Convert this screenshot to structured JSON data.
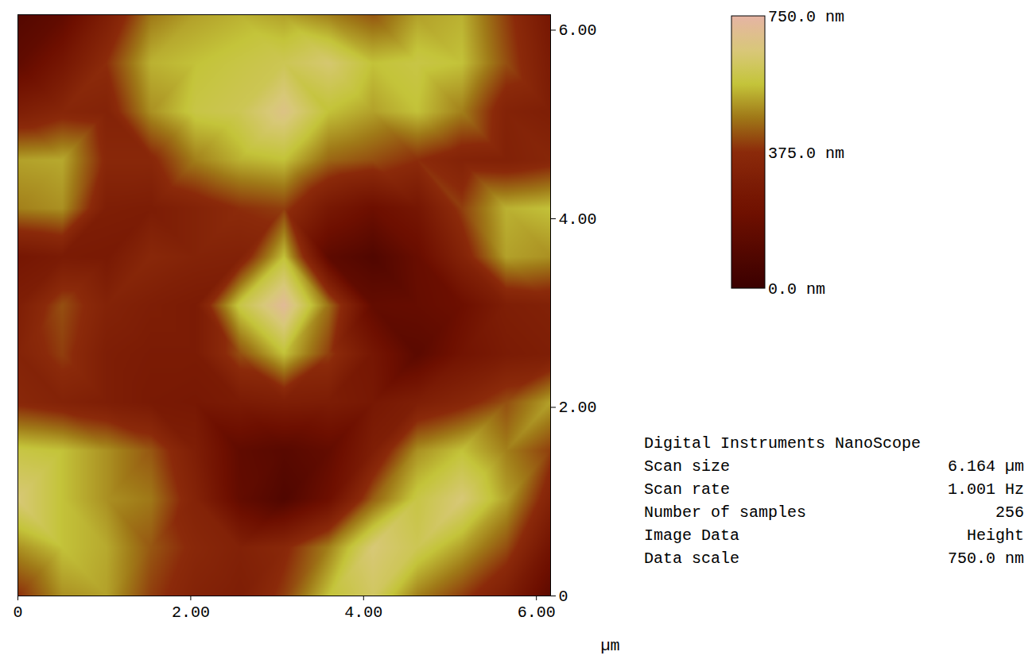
{
  "chart_data": {
    "type": "heatmap",
    "x": [
      0,
      0.514,
      1.027,
      1.541,
      2.055,
      2.568,
      3.082,
      3.596,
      4.109,
      4.623,
      5.137,
      5.651,
      6.164
    ],
    "y": [
      6.164,
      5.651,
      5.137,
      4.623,
      4.109,
      3.596,
      3.082,
      2.568,
      2.055,
      1.541,
      1.027,
      0.514,
      0
    ],
    "values": [
      [
        100,
        150,
        300,
        470,
        520,
        540,
        520,
        480,
        430,
        520,
        540,
        400,
        250
      ],
      [
        150,
        250,
        380,
        540,
        560,
        580,
        600,
        640,
        560,
        580,
        560,
        420,
        280
      ],
      [
        300,
        350,
        330,
        500,
        580,
        600,
        680,
        560,
        520,
        560,
        480,
        330,
        300
      ],
      [
        520,
        530,
        360,
        360,
        480,
        540,
        560,
        450,
        420,
        380,
        330,
        320,
        350
      ],
      [
        480,
        500,
        300,
        290,
        330,
        380,
        400,
        260,
        200,
        250,
        400,
        540,
        560
      ],
      [
        250,
        280,
        270,
        360,
        330,
        320,
        560,
        140,
        90,
        180,
        330,
        520,
        500
      ],
      [
        300,
        420,
        330,
        300,
        280,
        580,
        720,
        460,
        160,
        170,
        200,
        300,
        320
      ],
      [
        330,
        400,
        300,
        280,
        280,
        420,
        560,
        400,
        250,
        130,
        230,
        280,
        300
      ],
      [
        360,
        330,
        300,
        270,
        260,
        280,
        300,
        290,
        260,
        300,
        350,
        420,
        520
      ],
      [
        580,
        560,
        500,
        430,
        300,
        150,
        120,
        160,
        300,
        500,
        560,
        480,
        400
      ],
      [
        650,
        560,
        500,
        470,
        330,
        160,
        90,
        200,
        440,
        580,
        650,
        520,
        330
      ],
      [
        500,
        560,
        530,
        430,
        360,
        320,
        360,
        480,
        650,
        600,
        520,
        420,
        230
      ],
      [
        380,
        500,
        520,
        400,
        330,
        300,
        400,
        560,
        620,
        480,
        400,
        300,
        140
      ]
    ],
    "xlim": [
      0,
      6.164
    ],
    "ylim": [
      0,
      6.164
    ],
    "xticks": [
      0,
      {
        "value": 2,
        "label": "2.00"
      },
      {
        "value": 4,
        "label": "4.00"
      },
      {
        "value": 6,
        "label": "6.00"
      }
    ],
    "yticks": [
      0,
      {
        "value": 2,
        "label": "2.00"
      },
      {
        "value": 4,
        "label": "4.00"
      },
      {
        "value": 6,
        "label": "6.00"
      }
    ],
    "x_label": "µm",
    "colorbar": {
      "range": [
        0,
        750
      ],
      "ticks": [
        {
          "value": 0,
          "label": "0.0 nm"
        },
        {
          "value": 375,
          "label": "375.0 nm"
        },
        {
          "value": 750,
          "label": "750.0 nm"
        }
      ]
    },
    "info": {
      "title": "Digital Instruments NanoScope",
      "rows": [
        [
          "Scan size",
          "6.164 µm"
        ],
        [
          "Scan rate",
          "1.001 Hz"
        ],
        [
          "Number of samples",
          "256"
        ],
        [
          "Image Data",
          "Height"
        ],
        [
          "Data scale",
          "750.0 nm"
        ]
      ]
    }
  }
}
